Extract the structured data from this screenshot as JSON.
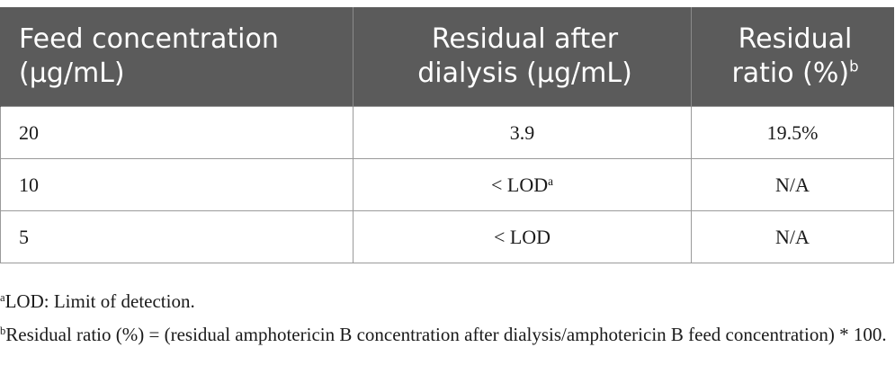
{
  "table": {
    "headers": [
      {
        "lines": [
          "Feed concentration",
          "(μg/mL)"
        ],
        "sup": ""
      },
      {
        "lines": [
          "Residual after",
          "dialysis (μg/mL)"
        ],
        "sup": ""
      },
      {
        "lines": [
          "Residual",
          "ratio (%)"
        ],
        "sup": "b"
      }
    ],
    "rows": [
      {
        "feed": "20",
        "residual": "3.9",
        "residual_sup": "",
        "ratio": "19.5%"
      },
      {
        "feed": "10",
        "residual": "< LOD",
        "residual_sup": "a",
        "ratio": "N/A"
      },
      {
        "feed": "5",
        "residual": "< LOD",
        "residual_sup": "",
        "ratio": "N/A"
      }
    ]
  },
  "footnotes": [
    {
      "mark": "a",
      "text": "LOD: Limit of detection."
    },
    {
      "mark": "b",
      "text": "Residual ratio (%) = (residual amphotericin B concentration after dialysis/amphotericin B feed concentration) * 100."
    }
  ],
  "colors": {
    "header_bg": "#5b5b5b",
    "header_text": "#ffffff",
    "border": "#9a9a9a",
    "body_text": "#1a1a1a"
  }
}
